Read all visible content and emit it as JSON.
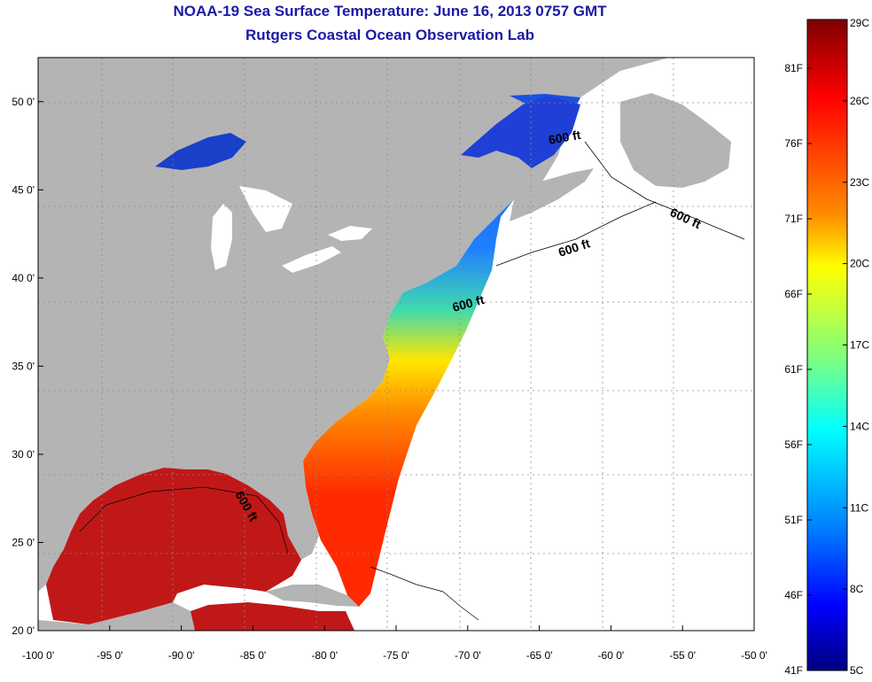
{
  "header": {
    "title": "NOAA-19 Sea Surface Temperature:  June 16, 2013 0757 GMT",
    "subtitle": "Rutgers Coastal Ocean Observation Lab"
  },
  "map": {
    "lon_range": [
      -100,
      -50
    ],
    "lat_range": [
      20,
      52.5
    ],
    "lon_ticks": [
      {
        "value": -100,
        "label": "-100 0'"
      },
      {
        "value": -95,
        "label": "-95 0'"
      },
      {
        "value": -90,
        "label": "-90 0'"
      },
      {
        "value": -85,
        "label": "-85 0'"
      },
      {
        "value": -80,
        "label": "-80 0'"
      },
      {
        "value": -75,
        "label": "-75 0'"
      },
      {
        "value": -70,
        "label": "-70 0'"
      },
      {
        "value": -65,
        "label": "-65 0'"
      },
      {
        "value": -60,
        "label": "-60 0'"
      },
      {
        "value": -55,
        "label": "-55 0'"
      },
      {
        "value": -50,
        "label": "-50 0'"
      }
    ],
    "lat_ticks": [
      {
        "value": 50,
        "label": "50 0'"
      },
      {
        "value": 45,
        "label": "45 0'"
      },
      {
        "value": 40,
        "label": "40 0'"
      },
      {
        "value": 35,
        "label": "35 0'"
      },
      {
        "value": 30,
        "label": "30 0'"
      },
      {
        "value": 25,
        "label": "25 0'"
      },
      {
        "value": 20,
        "label": "20 0'"
      }
    ],
    "isobath_labels": [
      "600 ft",
      "600 ft",
      "600 ft",
      "600 ft",
      "600 ft"
    ],
    "colors": {
      "land": "#b4b4b4",
      "ocean_no_data": "#ffffff",
      "grid": "#8c8c8c"
    }
  },
  "colorbar": {
    "celsius_labels": [
      "29C",
      "26C",
      "23C",
      "20C",
      "17C",
      "14C",
      "11C",
      "8C",
      "5C"
    ],
    "fahrenheit_labels": [
      "81F",
      "76F",
      "71F",
      "66F",
      "61F",
      "56F",
      "51F",
      "46F",
      "41F"
    ],
    "colors_top_to_bottom": [
      "#800000",
      "#ff0000",
      "#ff8000",
      "#ffff00",
      "#80ff80",
      "#00ffff",
      "#0080ff",
      "#0000ff",
      "#000080"
    ]
  }
}
